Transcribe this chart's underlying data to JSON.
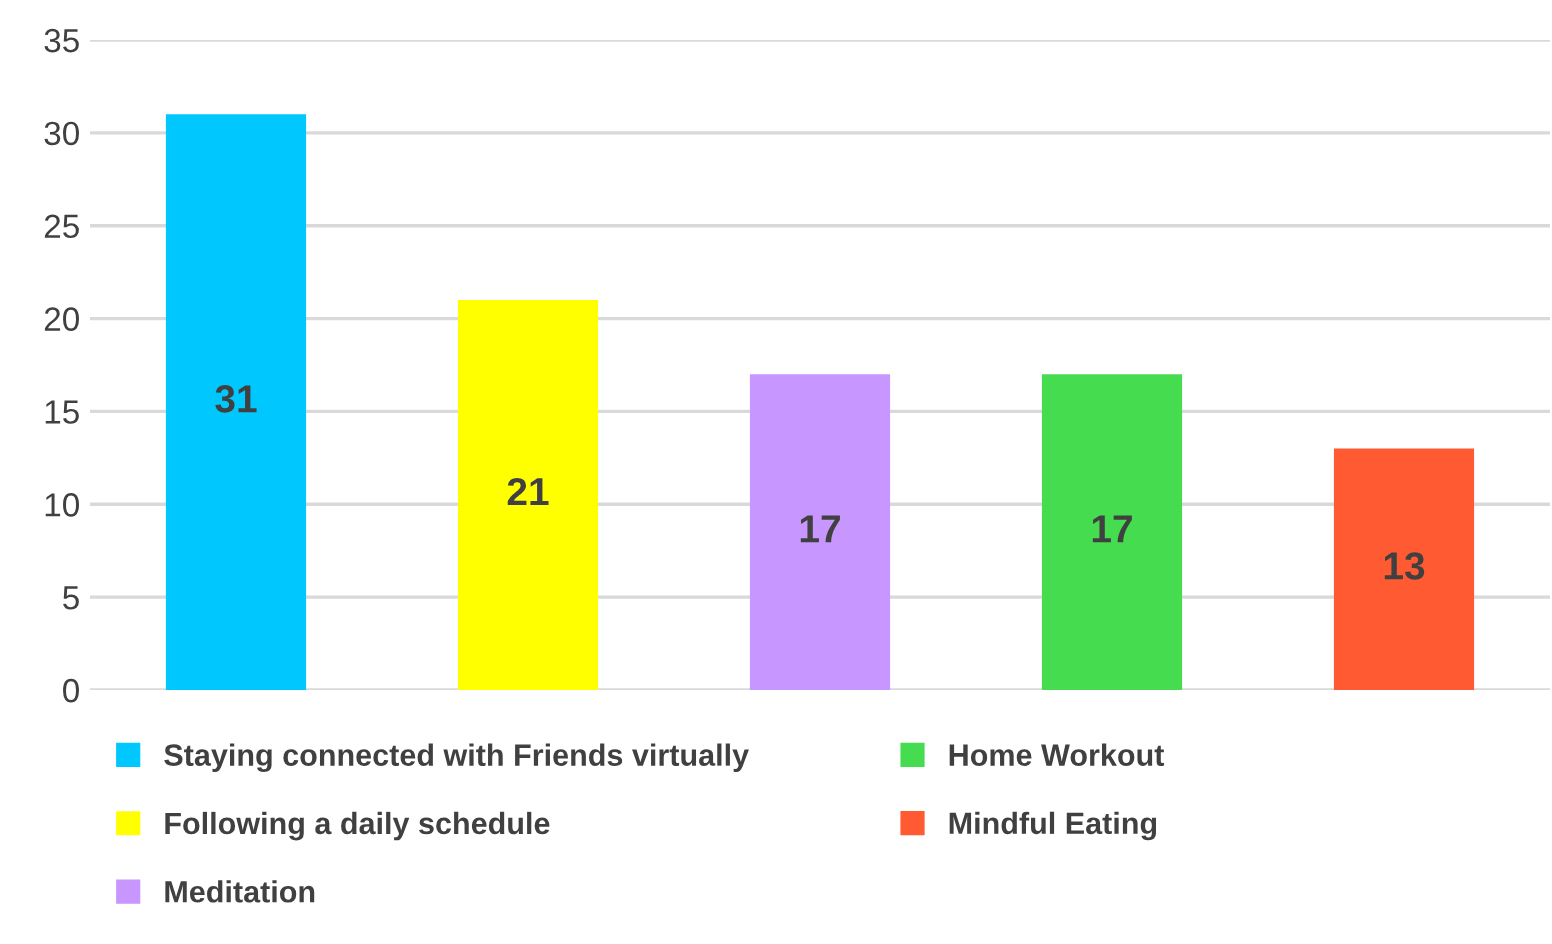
{
  "chart_data": {
    "type": "bar",
    "categories": [
      null,
      null,
      null,
      null,
      null
    ],
    "series": [
      {
        "name": "Staying connected with Friends virtually",
        "color": "#00c8ff",
        "values": [
          31,
          null,
          null,
          null,
          null
        ]
      },
      {
        "name": "Following a daily schedule",
        "color": "#ffff00",
        "values": [
          null,
          21,
          null,
          null,
          null
        ]
      },
      {
        "name": "Meditation",
        "color": "#c896ff",
        "values": [
          null,
          null,
          17,
          null,
          null
        ]
      },
      {
        "name": "Home Workout",
        "color": "#46dc50",
        "values": [
          null,
          null,
          null,
          17,
          null
        ]
      },
      {
        "name": "Mindful Eating",
        "color": "#ff5a32",
        "values": [
          null,
          null,
          null,
          null,
          13
        ]
      }
    ],
    "ylim": [
      0,
      35
    ],
    "yticks": [
      0,
      5,
      10,
      15,
      20,
      25,
      30,
      35
    ],
    "grid": "y",
    "legend": "bottom",
    "data_labels": true,
    "tick_labels": "y"
  }
}
